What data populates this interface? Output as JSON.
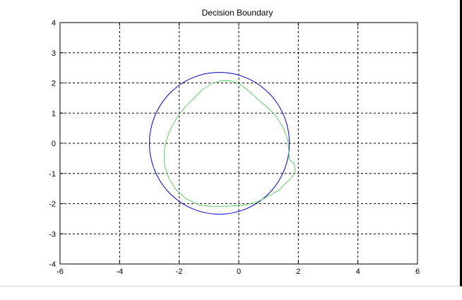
{
  "chart_data": {
    "type": "line",
    "title": "Decision Boundary",
    "xlabel": "",
    "ylabel": "",
    "xlim": [
      -6,
      6
    ],
    "ylim": [
      -4,
      4
    ],
    "xticks": [
      -6,
      -4,
      -2,
      0,
      2,
      4,
      6
    ],
    "yticks": [
      -4,
      -3,
      -2,
      -1,
      0,
      1,
      2,
      3,
      4
    ],
    "grid": true,
    "legend": "none",
    "series": [
      {
        "kind": "circle",
        "color": "#0000cc",
        "center": [
          -0.65,
          0
        ],
        "radius": 2.35
      },
      {
        "kind": "polyline",
        "color": "#66cc66",
        "x": [
          -0.85,
          -0.6,
          -0.25,
          0.05,
          0.35,
          0.65,
          0.95,
          1.25,
          1.5,
          1.65,
          1.68,
          1.7,
          1.85,
          1.9,
          1.8,
          1.6,
          1.35,
          1.0,
          0.6,
          0.2,
          -0.3,
          -0.8,
          -1.3,
          -1.75,
          -2.1,
          -2.35,
          -2.5,
          -2.5,
          -2.4,
          -2.25,
          -2.05,
          -1.8,
          -1.5,
          -1.2,
          -0.85
        ],
        "y": [
          2.0,
          2.07,
          2.07,
          1.95,
          1.72,
          1.45,
          1.2,
          0.9,
          0.5,
          0.1,
          -0.3,
          -0.55,
          -0.65,
          -0.9,
          -1.1,
          -1.3,
          -1.55,
          -1.75,
          -1.95,
          -2.05,
          -2.08,
          -2.1,
          -2.05,
          -1.85,
          -1.55,
          -1.15,
          -0.7,
          -0.2,
          0.2,
          0.55,
          0.9,
          1.2,
          1.5,
          1.8,
          2.0
        ]
      }
    ]
  }
}
